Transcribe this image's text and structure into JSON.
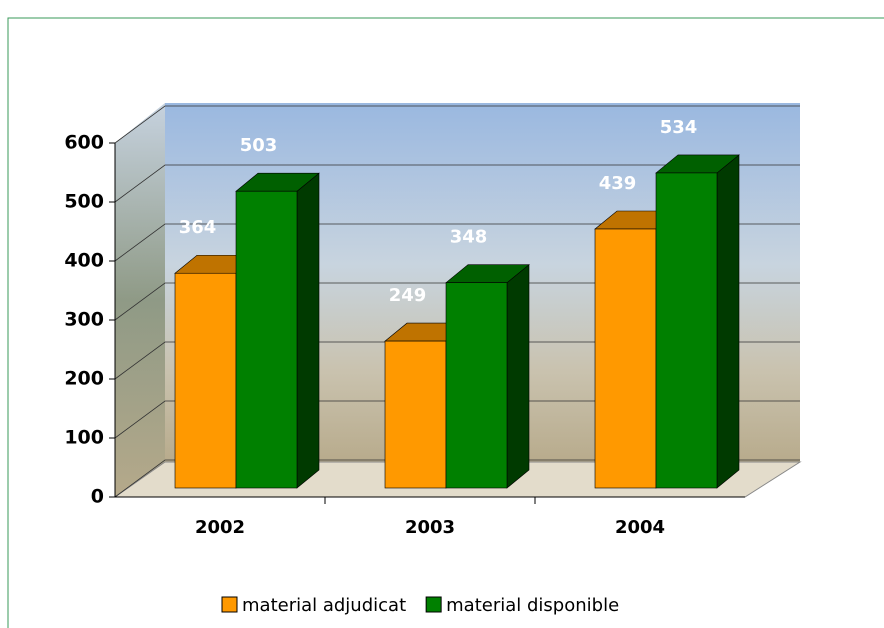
{
  "chart_data": {
    "type": "bar3d",
    "categories": [
      "2002",
      "2003",
      "2004"
    ],
    "series": [
      {
        "name": "material adjudicat",
        "color": "#ff9900",
        "values": [
          364,
          249,
          439
        ]
      },
      {
        "name": "material disponible",
        "color": "#008000",
        "values": [
          503,
          348,
          534
        ]
      }
    ],
    "ylim": [
      0,
      600
    ],
    "yticks": [
      0,
      100,
      200,
      300,
      400,
      500,
      600
    ],
    "grid": true,
    "legend": "bottom"
  }
}
